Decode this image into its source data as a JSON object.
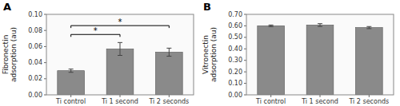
{
  "chart_data": [
    {
      "type": "bar",
      "title": "A",
      "categories": [
        "Ti control",
        "Ti 1 second",
        "Ti 2 seconds"
      ],
      "values": [
        0.03,
        0.057,
        0.053
      ],
      "errors": [
        0.002,
        0.008,
        0.005
      ],
      "ylabel": "Fibronectin\nadsorption (au)",
      "color": "#8a8a8a",
      "ylim": [
        0.0,
        0.1
      ],
      "yticks": [
        {
          "value": 0.0,
          "label": "0.00"
        },
        0.02,
        0.04,
        0.06,
        0.08,
        {
          "value": 0.1,
          "label": "0.10"
        }
      ],
      "grid": false,
      "significance": [
        {
          "from": "Ti control",
          "to": "Ti 1 second",
          "y": 0.075,
          "label": "*"
        },
        {
          "from": "Ti control",
          "to": "Ti 2 seconds",
          "y": 0.086,
          "label": "*"
        }
      ]
    },
    {
      "type": "bar",
      "title": "B",
      "categories": [
        "Ti control",
        "Ti 1 second",
        "Ti 2 seconds"
      ],
      "values": [
        0.6,
        0.607,
        0.585
      ],
      "errors": [
        0.007,
        0.012,
        0.009
      ],
      "ylabel": "Vitronectin\nadsorption (au)",
      "color": "#8a8a8a",
      "ylim": [
        0.0,
        0.7
      ],
      "yticks": [
        {
          "value": 0.0,
          "label": "0.00"
        },
        {
          "value": 0.1,
          "label": "0.10"
        },
        {
          "value": 0.2,
          "label": "0.20"
        },
        {
          "value": 0.3,
          "label": "0.30"
        },
        {
          "value": 0.4,
          "label": "0.40"
        },
        {
          "value": 0.5,
          "label": "0.50"
        },
        {
          "value": 0.6,
          "label": "0.60"
        },
        {
          "value": 0.7,
          "label": "0.70"
        }
      ],
      "grid": false,
      "significance": []
    }
  ]
}
